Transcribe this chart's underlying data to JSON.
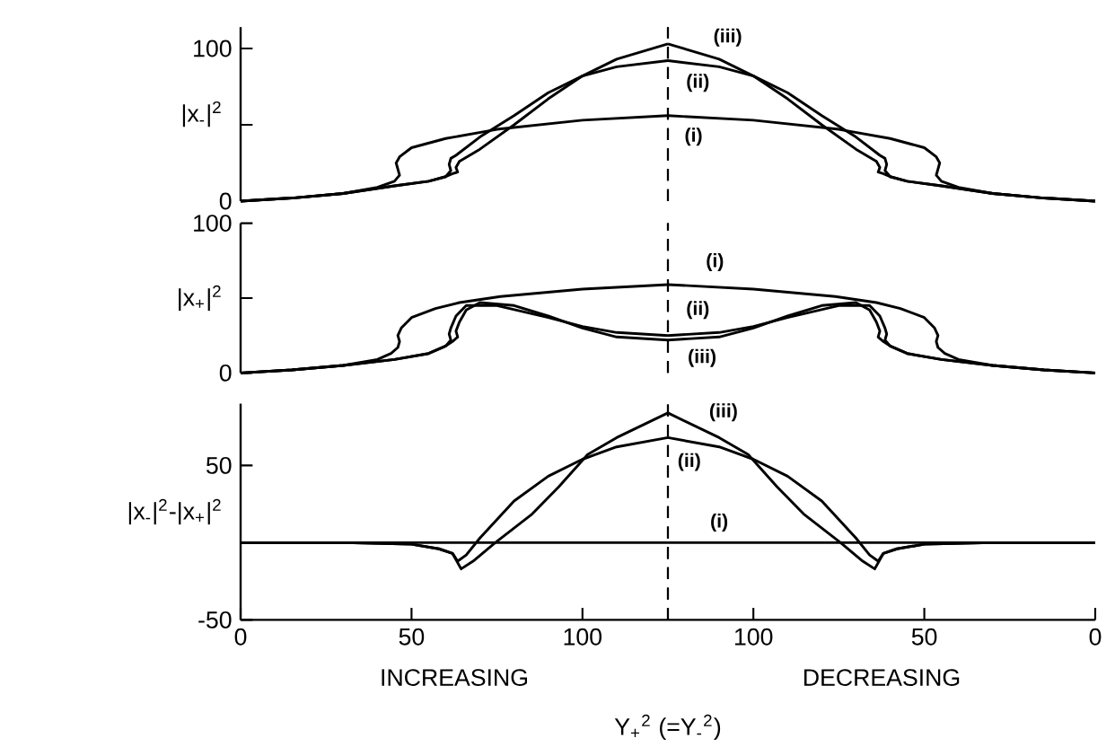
{
  "chart_data": [
    {
      "type": "line",
      "ylabel": "|x$_{-}$|$^{2}$",
      "xlim": [
        0,
        125
      ],
      "ylim": [
        0,
        114
      ],
      "yticks": [
        0,
        {
          "value": 50,
          "label": null
        },
        100
      ],
      "tick_labels": "y",
      "ref_lines": [
        {
          "axis": "x",
          "value": 125,
          "line_style": "dashed"
        }
      ],
      "series": [
        {
          "color": "#000000",
          "x": [
            0,
            15,
            30,
            40,
            45,
            46.5,
            46,
            45.5,
            46.5,
            50,
            60,
            75,
            100,
            125
          ],
          "values": [
            0,
            2,
            5,
            9,
            13,
            17,
            21,
            25,
            29,
            35,
            41,
            47,
            53,
            56
          ]
        },
        {
          "color": "#000000",
          "x": [
            0,
            15,
            30,
            45,
            55,
            60,
            61.5,
            61,
            61.5,
            63,
            70,
            80,
            90,
            100,
            110,
            125
          ],
          "values": [
            0,
            2,
            5,
            10,
            13,
            16,
            20,
            24,
            28,
            30,
            42,
            56,
            71,
            82,
            88,
            92
          ]
        },
        {
          "color": "#000000",
          "x": [
            0,
            15,
            30,
            45,
            55,
            60,
            62,
            63.5,
            63,
            64,
            70,
            80,
            90,
            100,
            110,
            125
          ],
          "values": [
            0,
            2,
            5,
            10,
            13,
            16,
            18,
            19,
            22,
            26,
            34,
            50,
            67,
            82,
            93,
            103
          ]
        }
      ]
    },
    {
      "type": "line",
      "xlim": [
        125,
        0
      ],
      "ylim": [
        0,
        114
      ],
      "tick_labels": false,
      "ref_lines": [
        {
          "axis": "x",
          "value": 125,
          "line_style": "dashed"
        }
      ],
      "series": [
        {
          "color": "#000000",
          "x": [
            125,
            100,
            75,
            60,
            50,
            46.5,
            45.5,
            46,
            46.5,
            45,
            40,
            30,
            15,
            0
          ],
          "values": [
            56,
            53,
            47,
            41,
            35,
            29,
            25,
            21,
            17,
            13,
            9,
            5,
            2,
            0
          ]
        },
        {
          "color": "#000000",
          "x": [
            125,
            110,
            100,
            90,
            80,
            70,
            63,
            61.5,
            61,
            61.5,
            60,
            55,
            45,
            30,
            15,
            0
          ],
          "values": [
            92,
            88,
            82,
            71,
            56,
            42,
            30,
            28,
            24,
            20,
            16,
            13,
            10,
            5,
            2,
            0
          ]
        },
        {
          "color": "#000000",
          "x": [
            125,
            110,
            100,
            90,
            80,
            70,
            64,
            63,
            63.5,
            62,
            60,
            55,
            45,
            30,
            15,
            0
          ],
          "values": [
            103,
            93,
            82,
            67,
            50,
            34,
            26,
            22,
            19,
            18,
            16,
            13,
            10,
            5,
            2,
            0
          ]
        }
      ],
      "annotations": [
        "(iii)",
        "(ii)",
        "(i)"
      ]
    },
    {
      "type": "line",
      "ylabel": "|x$_{+}$|$^{2}$",
      "xlim": [
        0,
        125
      ],
      "ylim": [
        0,
        100
      ],
      "yticks": [
        0,
        {
          "value": 50,
          "label": null
        },
        100
      ],
      "tick_labels": "y",
      "ref_lines": [
        {
          "axis": "x",
          "value": 125,
          "line_style": "dashed"
        }
      ],
      "series": [
        {
          "color": "#000000",
          "x": [
            0,
            15,
            30,
            40,
            44,
            46,
            46.5,
            46,
            47,
            50,
            57,
            64,
            76,
            100,
            125
          ],
          "values": [
            0,
            2,
            5,
            9,
            13,
            17,
            21,
            25,
            30,
            37,
            43,
            47,
            51,
            56,
            59
          ]
        },
        {
          "color": "#000000",
          "x": [
            0,
            15,
            30,
            45,
            55,
            60,
            61.5,
            61,
            61.5,
            63,
            66,
            75,
            90,
            100,
            110,
            125
          ],
          "values": [
            0,
            2,
            5,
            9,
            13,
            18,
            22,
            26,
            30,
            38,
            45,
            45,
            37,
            31,
            27,
            25
          ]
        },
        {
          "color": "#000000",
          "x": [
            0,
            15,
            30,
            45,
            55,
            60,
            62,
            63.5,
            63,
            64,
            66,
            70,
            80,
            90,
            100,
            110,
            125
          ],
          "values": [
            0,
            2,
            5,
            9,
            13,
            18,
            21,
            24,
            28,
            34,
            42,
            47,
            45,
            38,
            30,
            24,
            22
          ]
        }
      ]
    },
    {
      "type": "line",
      "xlim": [
        125,
        0
      ],
      "ylim": [
        0,
        100
      ],
      "tick_labels": false,
      "ref_lines": [
        {
          "axis": "x",
          "value": 125,
          "line_style": "dashed"
        }
      ],
      "series": [
        {
          "color": "#000000",
          "x": [
            125,
            100,
            76,
            64,
            57,
            50,
            47,
            46,
            46.5,
            46,
            44,
            40,
            30,
            15,
            0
          ],
          "values": [
            59,
            56,
            51,
            47,
            43,
            37,
            30,
            25,
            21,
            17,
            13,
            9,
            5,
            2,
            0
          ]
        },
        {
          "color": "#000000",
          "x": [
            125,
            110,
            100,
            90,
            75,
            66,
            63,
            61.5,
            61,
            61.5,
            60,
            55,
            45,
            30,
            15,
            0
          ],
          "values": [
            25,
            27,
            31,
            37,
            45,
            45,
            38,
            30,
            26,
            22,
            18,
            13,
            9,
            5,
            2,
            0
          ]
        },
        {
          "color": "#000000",
          "x": [
            125,
            110,
            100,
            90,
            80,
            70,
            66,
            64,
            63,
            63.5,
            62,
            60,
            55,
            45,
            30,
            15,
            0
          ],
          "values": [
            22,
            24,
            30,
            38,
            45,
            47,
            42,
            34,
            28,
            24,
            21,
            18,
            13,
            9,
            5,
            2,
            0
          ]
        }
      ],
      "annotations": [
        "(i)",
        "(ii)",
        "(iii)"
      ]
    },
    {
      "type": "line",
      "ylabel": "|x$_{-}$|$^{2}$-|x$_{+}$|$^{2}$",
      "xlabel": "Y$_{+}$$^{2}$ (=Y$_{-}$$^{2}$)",
      "xlim": [
        0,
        125
      ],
      "ylim": [
        -50,
        90
      ],
      "yticks": [
        -50,
        50
      ],
      "xticks": [
        0,
        50,
        100
      ],
      "ref_lines": [
        {
          "axis": "x",
          "value": 125,
          "line_style": "dashed"
        }
      ],
      "series": [
        {
          "color": "#000000",
          "x": [
            0,
            50,
            100,
            125
          ],
          "values": [
            0,
            0,
            0,
            0
          ]
        },
        {
          "color": "#000000",
          "x": [
            0,
            30,
            50,
            58,
            62,
            63.5,
            66,
            70,
            80,
            90,
            100,
            110,
            125
          ],
          "values": [
            0,
            0,
            -1,
            -4,
            -7,
            -12,
            -8,
            3,
            27,
            43,
            54,
            62,
            68
          ]
        },
        {
          "color": "#000000",
          "x": [
            0,
            30,
            50,
            58,
            62,
            64.5,
            68,
            74.5,
            85,
            93,
            101.5,
            110,
            125
          ],
          "values": [
            0,
            0,
            -1,
            -4,
            -7,
            -17,
            -12,
            0,
            18,
            36,
            57,
            68,
            84
          ]
        }
      ],
      "annotations": [
        "INCREASING"
      ]
    },
    {
      "type": "line",
      "xlim": [
        125,
        0
      ],
      "ylim": [
        -50,
        90
      ],
      "xticks": [
        100,
        50,
        0
      ],
      "tick_labels": "x",
      "ref_lines": [
        {
          "axis": "x",
          "value": 125,
          "line_style": "dashed"
        }
      ],
      "series": [
        {
          "color": "#000000",
          "x": [
            125,
            100,
            50,
            0
          ],
          "values": [
            0,
            0,
            0,
            0
          ]
        },
        {
          "color": "#000000",
          "x": [
            125,
            110,
            100,
            90,
            80,
            70,
            66,
            63.5,
            62,
            58,
            50,
            30,
            0
          ],
          "values": [
            68,
            62,
            54,
            43,
            27,
            3,
            -8,
            -12,
            -7,
            -4,
            -1,
            0,
            0
          ]
        },
        {
          "color": "#000000",
          "x": [
            125,
            110,
            101.5,
            93,
            85,
            74.5,
            68,
            64.5,
            62,
            58,
            50,
            30,
            0
          ],
          "values": [
            84,
            68,
            57,
            36,
            18,
            0,
            -12,
            -17,
            -7,
            -4,
            -1,
            0,
            0
          ]
        }
      ],
      "annotations": [
        "(iii)",
        "(ii)",
        "(i)",
        "DECREASING"
      ]
    }
  ]
}
